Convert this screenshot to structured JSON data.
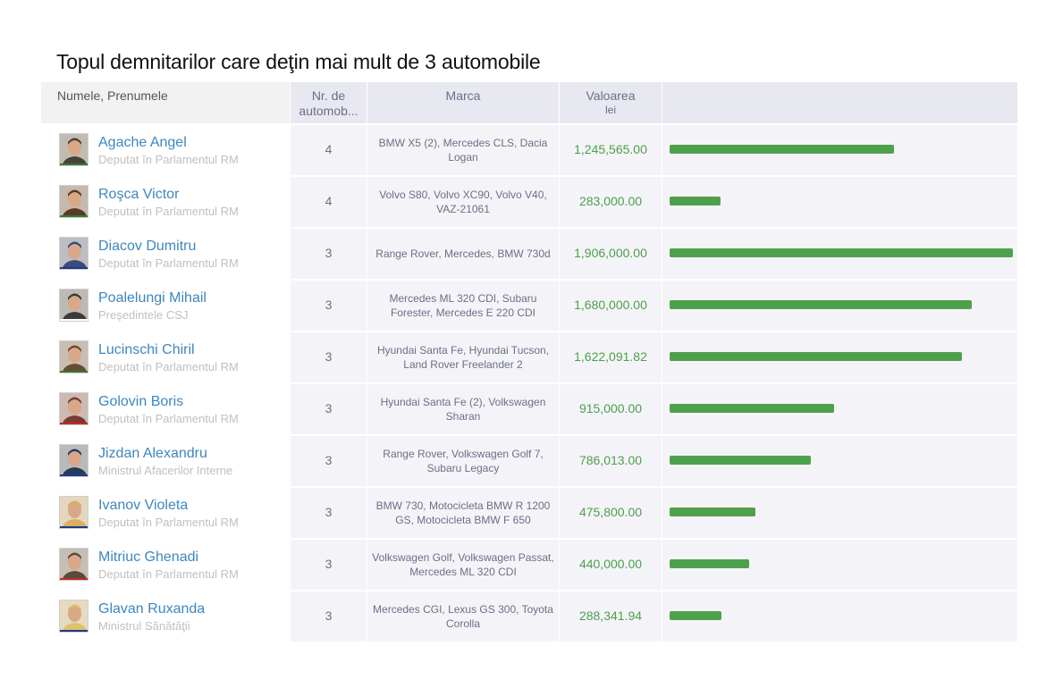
{
  "title": "Topul demnitarilor care deţin mai mult de 3 automobile",
  "header": {
    "name": "Numele, Prenumele",
    "nr": "Nr. de automob...",
    "marca": "Marca",
    "valoarea": "Valoarea",
    "valoarea_unit": "lei"
  },
  "colors": {
    "bar": "#4ea14c",
    "value_text": "#4d9f4a",
    "name_link": "#3d87c0"
  },
  "chart_data": {
    "type": "bar",
    "title": "Topul demnitarilor care deţin mai mult de 3 automobile",
    "ylabel": "Valoarea (lei)",
    "ylim": [
      0,
      1906000
    ],
    "categories": [
      "Agache Angel",
      "Roşca Victor",
      "Diacov Dumitru",
      "Poalelungi Mihail",
      "Lucinschi Chiril",
      "Golovin Boris",
      "Jizdan Alexandru",
      "Ivanov Violeta",
      "Mitriuc Ghenadi",
      "Glavan Ruxanda"
    ],
    "values": [
      1245565.0,
      283000.0,
      1906000.0,
      1680000.0,
      1622091.82,
      915000.0,
      786013.0,
      475800.0,
      440000.0,
      288341.94
    ]
  },
  "rows": [
    {
      "name": "Agache Angel",
      "role": "Deputat în Parlamentul RM",
      "nr": "4",
      "marca": "BMW X5 (2), Mercedes CLS, Dacia Logan",
      "value_label": "1,245,565.00",
      "value": 1245565.0,
      "photo_tone": "#4a4236",
      "stripe": "#2e7d32"
    },
    {
      "name": "Roşca Victor",
      "role": "Deputat în Parlamentul RM",
      "nr": "4",
      "marca": "Volvo S80, Volvo XC90, Volvo V40, VAZ-21061",
      "value_label": "283,000.00",
      "value": 283000.0,
      "photo_tone": "#5a3a22",
      "stripe": "#2e7d32"
    },
    {
      "name": "Diacov Dumitru",
      "role": "Deputat în Parlamentul RM",
      "nr": "3",
      "marca": "Range Rover, Mercedes, BMW 730d",
      "value_label": "1,906,000.00",
      "value": 1906000.0,
      "photo_tone": "#3a4a7a",
      "stripe": "#1e3a8a"
    },
    {
      "name": "Poalelungi Mihail",
      "role": "Preşedintele CSJ",
      "nr": "3",
      "marca": "Mercedes ML 320 CDI, Subaru Forester, Mercedes E 220 CDI",
      "value_label": "1,680,000.00",
      "value": 1680000.0,
      "photo_tone": "#3a3a3a",
      "stripe": "#ffffff"
    },
    {
      "name": "Lucinschi Chiril",
      "role": "Deputat în Parlamentul RM",
      "nr": "3",
      "marca": "Hyundai Santa Fe, Hyundai Tucson, Land Rover Freelander 2",
      "value_label": "1,622,091.82",
      "value": 1622091.82,
      "photo_tone": "#6a4a32",
      "stripe": "#2e7d32"
    },
    {
      "name": "Golovin Boris",
      "role": "Deputat în Parlamentul RM",
      "nr": "3",
      "marca": "Hyundai Santa Fe (2), Volkswagen Sharan",
      "value_label": "915,000.00",
      "value": 915000.0,
      "photo_tone": "#7a3a32",
      "stripe": "#c62828"
    },
    {
      "name": "Jizdan Alexandru",
      "role": "Ministrul Afacerilor Interne",
      "nr": "3",
      "marca": "Range Rover, Volkswagen Golf 7, Subaru Legacy",
      "value_label": "786,013.00",
      "value": 786013.0,
      "photo_tone": "#2a3a5a",
      "stripe": "#1e3a8a"
    },
    {
      "name": "Ivanov Violeta",
      "role": "Deputat în Parlamentul RM",
      "nr": "3",
      "marca": "BMW 730, Motocicleta BMW R 1200 GS, Motocicleta BMW F 650",
      "value_label": "475,800.00",
      "value": 475800.0,
      "photo_tone": "#d8b060",
      "stripe": "#1e3a8a"
    },
    {
      "name": "Mitriuc Ghenadi",
      "role": "Deputat în Parlamentul RM",
      "nr": "3",
      "marca": "Volkswagen Golf, Volkswagen Passat, Mercedes ML 320 CDI",
      "value_label": "440,000.00",
      "value": 440000.0,
      "photo_tone": "#5a4a3a",
      "stripe": "#c62828"
    },
    {
      "name": "Glavan Ruxanda",
      "role": "Ministrul Sănătăţii",
      "nr": "3",
      "marca": "Mercedes CGI, Lexus GS 300, Toyota Corolla",
      "value_label": "288,341.94",
      "value": 288341.94,
      "photo_tone": "#e0c070",
      "stripe": "#1e3a8a"
    }
  ]
}
